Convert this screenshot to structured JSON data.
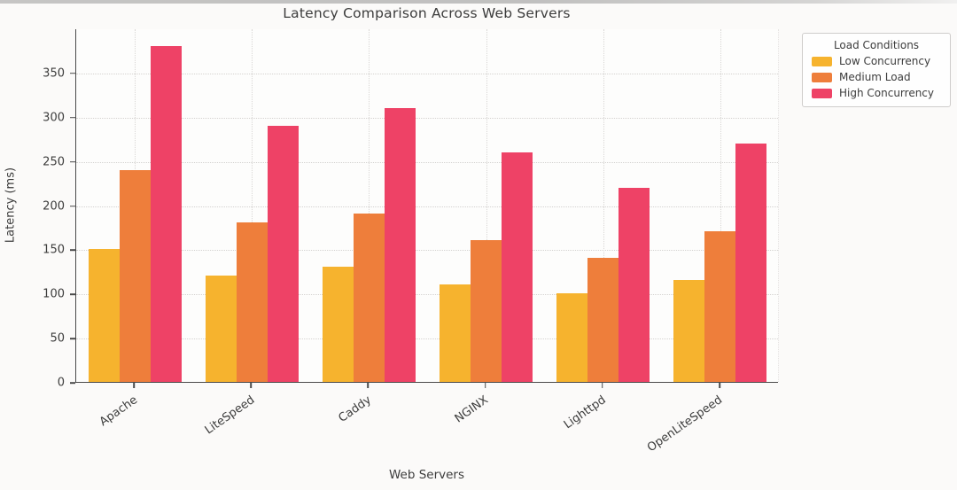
{
  "title": "Latency Comparison Across Web Servers",
  "chart_data": {
    "type": "bar",
    "title": "Latency Comparison Across Web Servers",
    "xlabel": "Web Servers",
    "ylabel": "Latency (ms)",
    "categories": [
      "Apache",
      "LiteSpeed",
      "Caddy",
      "NGINX",
      "Lighttpd",
      "OpenLiteSpeed"
    ],
    "series": [
      {
        "name": "Low Concurrency",
        "color": "#F6B32E",
        "values": [
          150,
          120,
          130,
          110,
          100,
          115
        ]
      },
      {
        "name": "Medium Load",
        "color": "#EE7E3B",
        "values": [
          240,
          180,
          190,
          160,
          140,
          170
        ]
      },
      {
        "name": "High Concurrency",
        "color": "#EE4266",
        "values": [
          380,
          290,
          310,
          260,
          220,
          270
        ]
      }
    ],
    "yticks": [
      0,
      50,
      100,
      150,
      200,
      250,
      300,
      350
    ],
    "ylim": [
      0,
      400
    ],
    "grid": "dotted",
    "legend": {
      "title": "Load Conditions",
      "position": "upper-right-outside"
    }
  }
}
